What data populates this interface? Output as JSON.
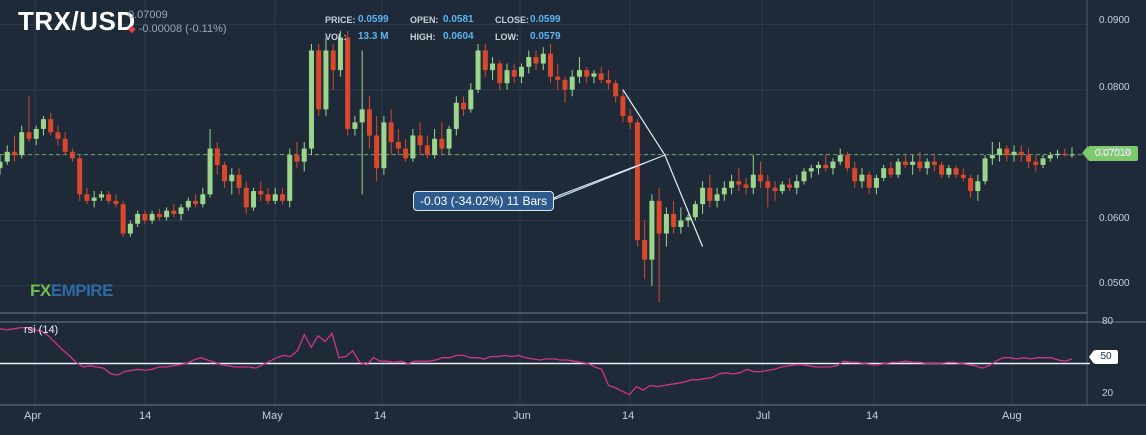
{
  "header": {
    "symbol": "TRX/USD",
    "last": "0.07009",
    "change": "-0.00008 (-0.11%)",
    "price_label": "PRICE:",
    "price": "0.0599",
    "open_label": "OPEN:",
    "open": "0.0581",
    "close_label": "CLOSE:",
    "close": "0.0599",
    "vol_label": "VOL:",
    "vol": "13.3 M",
    "high_label": "HIGH:",
    "high": "0.0604",
    "low_label": "LOW:",
    "low": "0.0579"
  },
  "brand": {
    "fx": "FX",
    "rest": "EMPIRE"
  },
  "rsi_label": "rsi (14)",
  "measure_label": "-0.03 (-34.02%) 11 Bars",
  "current_price_tag": "0.07010",
  "rsi_level_tag": "50",
  "colors": {
    "background": "#1e2a38",
    "up": "#9ed58c",
    "down": "#d9482b",
    "rsi": "#d0338a",
    "grid": "#2b3a4b"
  },
  "chart_data": [
    {
      "type": "candlestick",
      "x_ticks": [
        "Apr",
        "14",
        "May",
        "14",
        "Jun",
        "14",
        "Jul",
        "14",
        "Aug"
      ],
      "y_ticks": [
        "0.0900",
        "0.0800",
        "0.0700",
        "0.0600",
        "0.0500"
      ],
      "ylim": [
        0.046,
        0.0925
      ],
      "current_price": 0.0701,
      "candles": [
        [
          0.068,
          0.07,
          0.067,
          0.069
        ],
        [
          0.069,
          0.0715,
          0.0685,
          0.0705
        ],
        [
          0.0705,
          0.073,
          0.069,
          0.07
        ],
        [
          0.07,
          0.0745,
          0.0695,
          0.0735
        ],
        [
          0.0735,
          0.079,
          0.072,
          0.0725
        ],
        [
          0.0725,
          0.0745,
          0.0715,
          0.074
        ],
        [
          0.074,
          0.076,
          0.073,
          0.0755
        ],
        [
          0.0755,
          0.0765,
          0.073,
          0.0735
        ],
        [
          0.0735,
          0.0745,
          0.0715,
          0.0725
        ],
        [
          0.0725,
          0.0735,
          0.07,
          0.0705
        ],
        [
          0.0705,
          0.071,
          0.069,
          0.0695
        ],
        [
          0.0695,
          0.07,
          0.063,
          0.064
        ],
        [
          0.064,
          0.065,
          0.0625,
          0.063
        ],
        [
          0.063,
          0.0645,
          0.062,
          0.0635
        ],
        [
          0.0635,
          0.0645,
          0.063,
          0.064
        ],
        [
          0.064,
          0.0645,
          0.0625,
          0.063
        ],
        [
          0.063,
          0.064,
          0.062,
          0.0625
        ],
        [
          0.0625,
          0.063,
          0.0575,
          0.058
        ],
        [
          0.058,
          0.06,
          0.0575,
          0.0595
        ],
        [
          0.0595,
          0.0615,
          0.059,
          0.061
        ],
        [
          0.061,
          0.0615,
          0.0595,
          0.06
        ],
        [
          0.06,
          0.0615,
          0.0595,
          0.061
        ],
        [
          0.061,
          0.0618,
          0.06,
          0.0605
        ],
        [
          0.0605,
          0.062,
          0.06,
          0.0615
        ],
        [
          0.0615,
          0.0625,
          0.0605,
          0.061
        ],
        [
          0.061,
          0.0625,
          0.06,
          0.062
        ],
        [
          0.062,
          0.0635,
          0.0615,
          0.063
        ],
        [
          0.063,
          0.064,
          0.062,
          0.0625
        ],
        [
          0.0625,
          0.065,
          0.062,
          0.064
        ],
        [
          0.064,
          0.074,
          0.0635,
          0.071
        ],
        [
          0.071,
          0.072,
          0.067,
          0.0685
        ],
        [
          0.0685,
          0.069,
          0.065,
          0.066
        ],
        [
          0.066,
          0.068,
          0.064,
          0.067
        ],
        [
          0.067,
          0.068,
          0.064,
          0.065
        ],
        [
          0.065,
          0.066,
          0.061,
          0.062
        ],
        [
          0.062,
          0.065,
          0.0615,
          0.0645
        ],
        [
          0.0645,
          0.066,
          0.063,
          0.064
        ],
        [
          0.064,
          0.065,
          0.0625,
          0.063
        ],
        [
          0.063,
          0.065,
          0.0625,
          0.064
        ],
        [
          0.064,
          0.065,
          0.0625,
          0.063
        ],
        [
          0.063,
          0.071,
          0.062,
          0.07
        ],
        [
          0.07,
          0.072,
          0.068,
          0.069
        ],
        [
          0.069,
          0.072,
          0.0675,
          0.071
        ],
        [
          0.071,
          0.087,
          0.07,
          0.086
        ],
        [
          0.086,
          0.087,
          0.076,
          0.077
        ],
        [
          0.077,
          0.088,
          0.076,
          0.086
        ],
        [
          0.086,
          0.087,
          0.08,
          0.083
        ],
        [
          0.083,
          0.089,
          0.082,
          0.088
        ],
        [
          0.088,
          0.089,
          0.073,
          0.074
        ],
        [
          0.074,
          0.076,
          0.073,
          0.075
        ],
        [
          0.075,
          0.086,
          0.064,
          0.077
        ],
        [
          0.077,
          0.079,
          0.071,
          0.073
        ],
        [
          0.073,
          0.076,
          0.066,
          0.068
        ],
        [
          0.068,
          0.076,
          0.067,
          0.075
        ],
        [
          0.075,
          0.077,
          0.07,
          0.072
        ],
        [
          0.072,
          0.074,
          0.07,
          0.071
        ],
        [
          0.071,
          0.0725,
          0.069,
          0.0695
        ],
        [
          0.0695,
          0.074,
          0.069,
          0.073
        ],
        [
          0.073,
          0.075,
          0.07,
          0.0715
        ],
        [
          0.0715,
          0.073,
          0.0695,
          0.07
        ],
        [
          0.07,
          0.074,
          0.0695,
          0.0725
        ],
        [
          0.0725,
          0.075,
          0.07,
          0.071
        ],
        [
          0.071,
          0.0745,
          0.07,
          0.074
        ],
        [
          0.074,
          0.079,
          0.073,
          0.078
        ],
        [
          0.078,
          0.079,
          0.076,
          0.077
        ],
        [
          0.077,
          0.081,
          0.0765,
          0.08
        ],
        [
          0.08,
          0.087,
          0.0795,
          0.086
        ],
        [
          0.086,
          0.087,
          0.082,
          0.083
        ],
        [
          0.083,
          0.085,
          0.0815,
          0.084
        ],
        [
          0.084,
          0.0845,
          0.08,
          0.081
        ],
        [
          0.081,
          0.084,
          0.08,
          0.083
        ],
        [
          0.083,
          0.084,
          0.081,
          0.082
        ],
        [
          0.082,
          0.084,
          0.081,
          0.0835
        ],
        [
          0.0835,
          0.086,
          0.0825,
          0.085
        ],
        [
          0.085,
          0.086,
          0.083,
          0.084
        ],
        [
          0.084,
          0.0865,
          0.083,
          0.0855
        ],
        [
          0.0855,
          0.087,
          0.081,
          0.082
        ],
        [
          0.082,
          0.084,
          0.08,
          0.0815
        ],
        [
          0.0815,
          0.082,
          0.078,
          0.08
        ],
        [
          0.08,
          0.083,
          0.079,
          0.082
        ],
        [
          0.082,
          0.085,
          0.081,
          0.083
        ],
        [
          0.083,
          0.0835,
          0.081,
          0.082
        ],
        [
          0.082,
          0.083,
          0.081,
          0.0825
        ],
        [
          0.0825,
          0.0835,
          0.081,
          0.0815
        ],
        [
          0.0815,
          0.083,
          0.08,
          0.081
        ],
        [
          0.081,
          0.0815,
          0.078,
          0.079
        ],
        [
          0.079,
          0.08,
          0.075,
          0.076
        ],
        [
          0.076,
          0.077,
          0.074,
          0.075
        ],
        [
          0.075,
          0.0755,
          0.056,
          0.057
        ],
        [
          0.057,
          0.06,
          0.051,
          0.054
        ],
        [
          0.054,
          0.064,
          0.05,
          0.063
        ],
        [
          0.063,
          0.065,
          0.0475,
          0.058
        ],
        [
          0.058,
          0.062,
          0.056,
          0.061
        ],
        [
          0.061,
          0.063,
          0.058,
          0.059
        ],
        [
          0.059,
          0.062,
          0.058,
          0.06
        ],
        [
          0.06,
          0.061,
          0.059,
          0.0605
        ],
        [
          0.0605,
          0.063,
          0.06,
          0.0625
        ],
        [
          0.0625,
          0.066,
          0.061,
          0.065
        ],
        [
          0.065,
          0.067,
          0.062,
          0.063
        ],
        [
          0.063,
          0.065,
          0.062,
          0.064
        ],
        [
          0.064,
          0.066,
          0.063,
          0.065
        ],
        [
          0.065,
          0.067,
          0.064,
          0.066
        ],
        [
          0.066,
          0.068,
          0.0645,
          0.0655
        ],
        [
          0.0655,
          0.0665,
          0.064,
          0.065
        ],
        [
          0.065,
          0.07,
          0.064,
          0.067
        ],
        [
          0.067,
          0.069,
          0.065,
          0.066
        ],
        [
          0.066,
          0.067,
          0.062,
          0.065
        ],
        [
          0.065,
          0.066,
          0.063,
          0.0645
        ],
        [
          0.0645,
          0.066,
          0.064,
          0.0655
        ],
        [
          0.0655,
          0.0665,
          0.0645,
          0.065
        ],
        [
          0.065,
          0.067,
          0.064,
          0.066
        ],
        [
          0.066,
          0.068,
          0.0655,
          0.0675
        ],
        [
          0.0675,
          0.0685,
          0.0665,
          0.068
        ],
        [
          0.068,
          0.069,
          0.067,
          0.0685
        ],
        [
          0.0685,
          0.07,
          0.0675,
          0.068
        ],
        [
          0.068,
          0.0695,
          0.067,
          0.069
        ],
        [
          0.069,
          0.071,
          0.0685,
          0.07
        ],
        [
          0.07,
          0.0705,
          0.0675,
          0.068
        ],
        [
          0.068,
          0.069,
          0.065,
          0.066
        ],
        [
          0.066,
          0.068,
          0.065,
          0.067
        ],
        [
          0.067,
          0.0675,
          0.064,
          0.065
        ],
        [
          0.065,
          0.067,
          0.064,
          0.0665
        ],
        [
          0.0665,
          0.0685,
          0.066,
          0.068
        ],
        [
          0.068,
          0.069,
          0.0665,
          0.067
        ],
        [
          0.067,
          0.0695,
          0.0665,
          0.069
        ],
        [
          0.069,
          0.07,
          0.068,
          0.0685
        ],
        [
          0.0685,
          0.07,
          0.067,
          0.069
        ],
        [
          0.069,
          0.0705,
          0.0675,
          0.068
        ],
        [
          0.068,
          0.0695,
          0.067,
          0.069
        ],
        [
          0.069,
          0.07,
          0.0675,
          0.0685
        ],
        [
          0.0685,
          0.069,
          0.0665,
          0.067
        ],
        [
          0.067,
          0.0685,
          0.0665,
          0.068
        ],
        [
          0.068,
          0.0685,
          0.0665,
          0.067
        ],
        [
          0.067,
          0.068,
          0.066,
          0.0665
        ],
        [
          0.0665,
          0.067,
          0.0635,
          0.0645
        ],
        [
          0.0645,
          0.067,
          0.063,
          0.066
        ],
        [
          0.066,
          0.07,
          0.0655,
          0.0695
        ],
        [
          0.0695,
          0.072,
          0.0685,
          0.07
        ],
        [
          0.07,
          0.072,
          0.069,
          0.071
        ],
        [
          0.071,
          0.0715,
          0.069,
          0.07
        ],
        [
          0.07,
          0.0715,
          0.069,
          0.0705
        ],
        [
          0.0705,
          0.0715,
          0.069,
          0.07
        ],
        [
          0.07,
          0.071,
          0.068,
          0.069
        ],
        [
          0.069,
          0.07,
          0.0675,
          0.0685
        ],
        [
          0.0685,
          0.07,
          0.068,
          0.0695
        ],
        [
          0.0695,
          0.0705,
          0.069,
          0.07
        ],
        [
          0.07,
          0.0708,
          0.0695,
          0.0702
        ],
        [
          0.0702,
          0.071,
          0.0698,
          0.07
        ],
        [
          0.07,
          0.0712,
          0.0696,
          0.0701
        ]
      ]
    },
    {
      "type": "line",
      "name": "rsi (14)",
      "ylim": [
        15,
        85
      ],
      "y_ticks": [
        "80",
        "50",
        "20"
      ],
      "reference_level": 50,
      "values": [
        80,
        79,
        80,
        81,
        81,
        79,
        78,
        74,
        68,
        62,
        57,
        51,
        47,
        48,
        47,
        46,
        41,
        40,
        43,
        44,
        45,
        44,
        45,
        47,
        47,
        48,
        49,
        50,
        53,
        55,
        53,
        51,
        49,
        48,
        47,
        47,
        47,
        46,
        49,
        52,
        55,
        57,
        56,
        61,
        75,
        64,
        74,
        69,
        76,
        55,
        56,
        61,
        51,
        49,
        55,
        52,
        52,
        51,
        52,
        50,
        52,
        52,
        52,
        53,
        55,
        55,
        57,
        57,
        55,
        55,
        54,
        56,
        56,
        57,
        56,
        57,
        55,
        54,
        53,
        54,
        54,
        53,
        53,
        52,
        51,
        50,
        47,
        45,
        31,
        29,
        26,
        23,
        30,
        27,
        31,
        30,
        31,
        32,
        33,
        34,
        36,
        36,
        37,
        38,
        41,
        42,
        41,
        42,
        45,
        43,
        43,
        44,
        45,
        47,
        48,
        49,
        49,
        48,
        47,
        47,
        47,
        48,
        52,
        51,
        51,
        50,
        49,
        49,
        50,
        51,
        51,
        52,
        51,
        51,
        50,
        50,
        50,
        51,
        51,
        50,
        49,
        48,
        46,
        48,
        52,
        55,
        55,
        54,
        55,
        54,
        55,
        55,
        55,
        53,
        52,
        54
      ]
    }
  ]
}
